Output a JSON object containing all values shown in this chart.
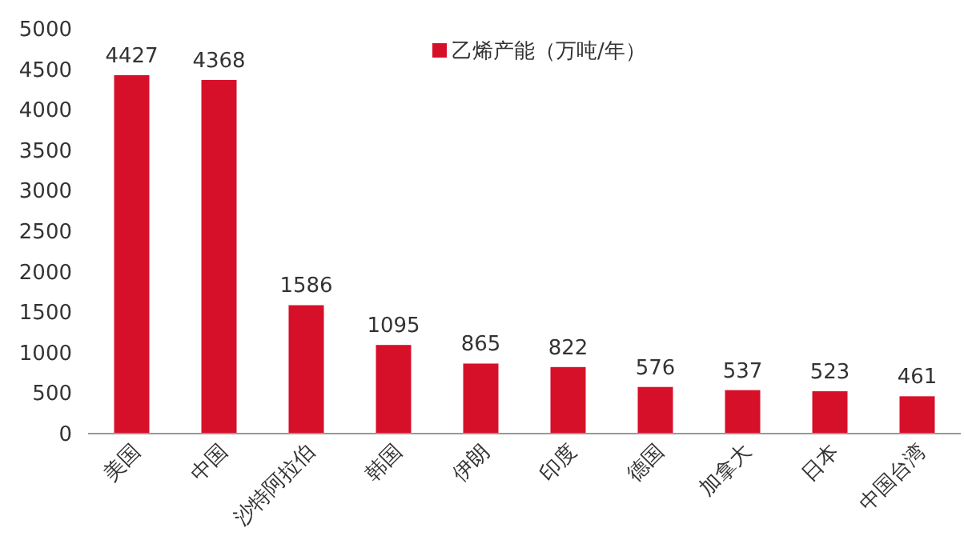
{
  "chart_data": {
    "type": "bar",
    "categories": [
      "美国",
      "中国",
      "沙特阿拉伯",
      "韩国",
      "伊朗",
      "印度",
      "德国",
      "加拿大",
      "日本",
      "中国台湾"
    ],
    "series": [
      {
        "name": "乙烯产能（万吨/年）",
        "color": "#d7102a",
        "values": [
          4427,
          4368,
          1586,
          1095,
          865,
          822,
          576,
          537,
          523,
          461
        ]
      }
    ],
    "ylim": [
      0,
      5000
    ],
    "yticks": [
      0,
      500,
      1000,
      1500,
      2000,
      2500,
      3000,
      3500,
      4000,
      4500,
      5000
    ],
    "data_labels": true,
    "legend": "top",
    "grid": false
  }
}
